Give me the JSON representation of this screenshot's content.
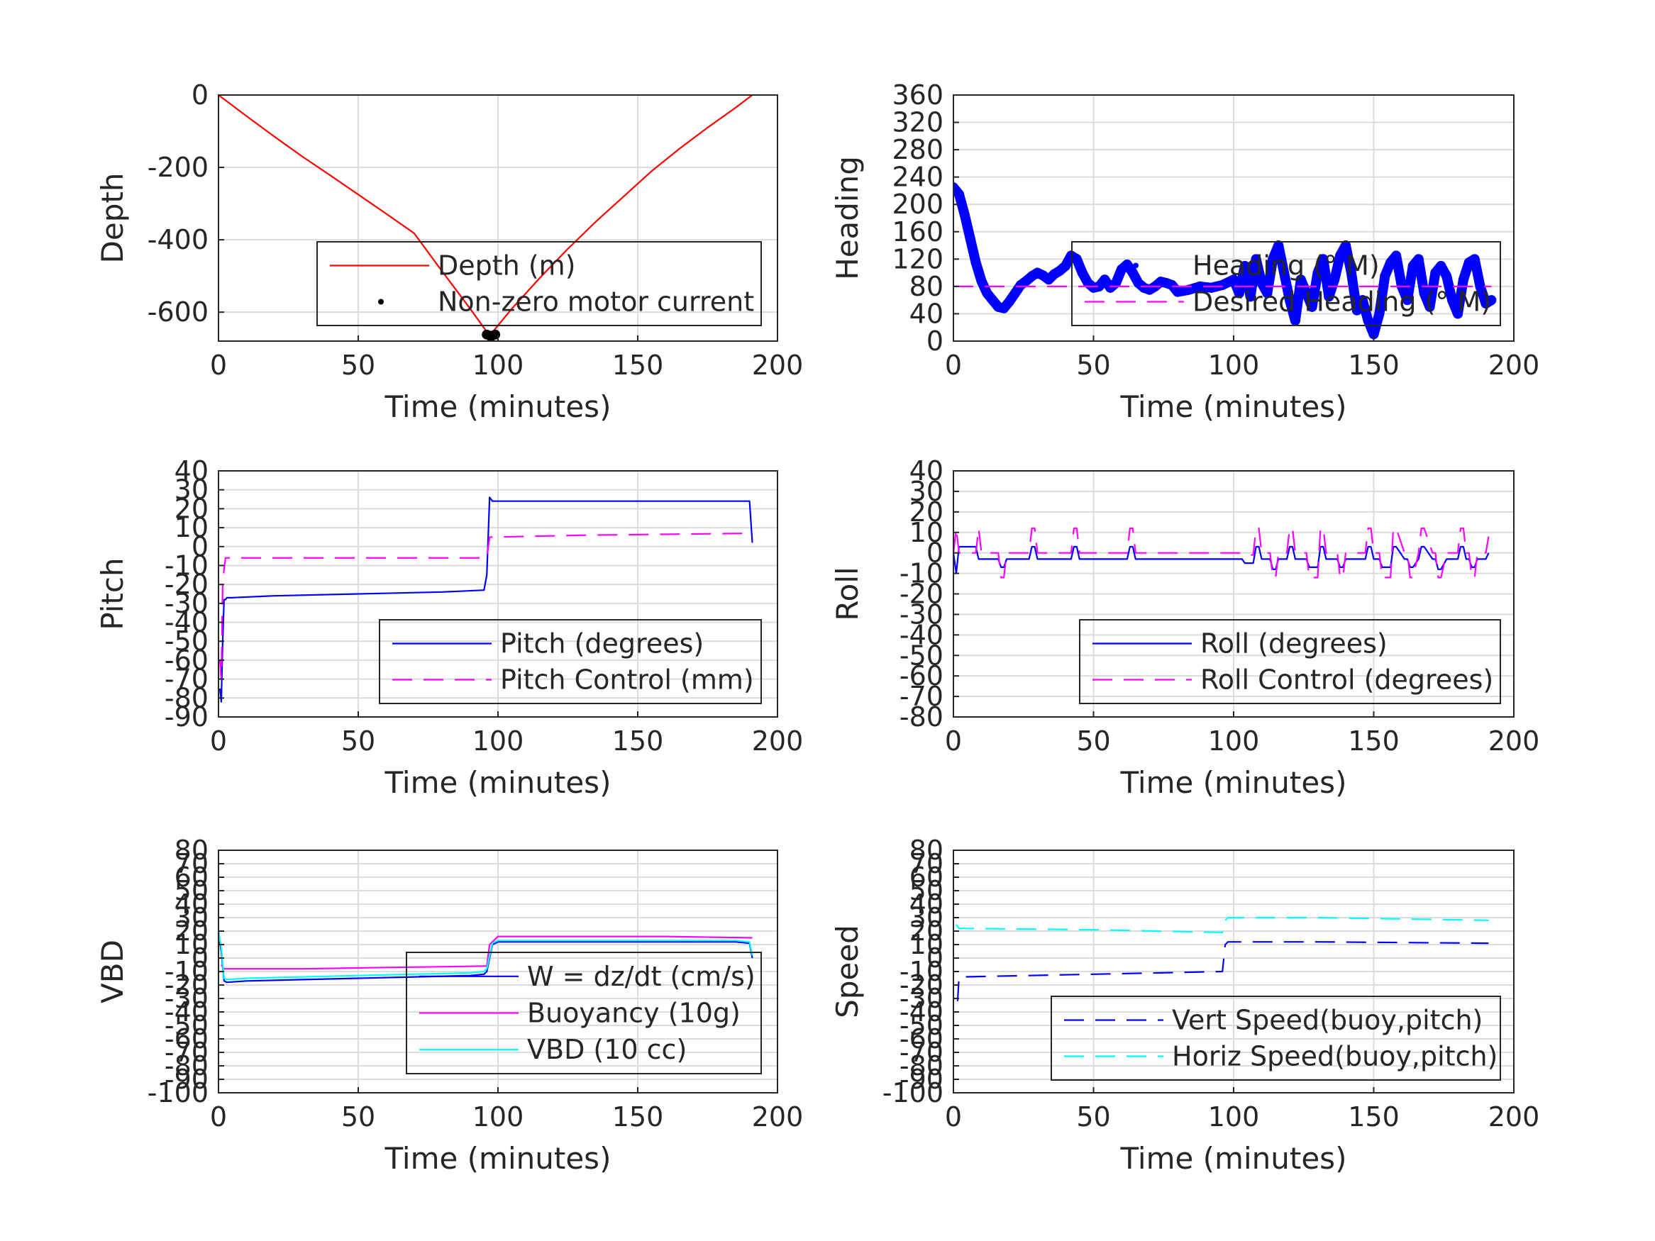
{
  "chart_data": [
    {
      "id": "depth",
      "type": "line",
      "xlabel": "Time (minutes)",
      "ylabel": "Depth",
      "xlim": [
        0,
        200
      ],
      "ylim": [
        -680,
        0
      ],
      "xticks": [
        0,
        50,
        100,
        150,
        200
      ],
      "yticks": [
        0,
        -200,
        -400,
        -600
      ],
      "grid": true,
      "legend_position": "lower-right",
      "series": [
        {
          "name": "Depth (m)",
          "color": "#ff0000",
          "style": "solid",
          "x": [
            0,
            10,
            20,
            30,
            40,
            50,
            60,
            70,
            80,
            90,
            97,
            105,
            115,
            125,
            135,
            145,
            155,
            165,
            175,
            185,
            191
          ],
          "y": [
            0,
            -58,
            -115,
            -170,
            -222,
            -275,
            -328,
            -382,
            -487,
            -590,
            -665,
            -590,
            -505,
            -425,
            -350,
            -280,
            -210,
            -148,
            -90,
            -35,
            0
          ]
        },
        {
          "name": "Non-zero motor current",
          "color": "#000000",
          "style": "marker",
          "x": [
            96,
            97,
            98,
            99
          ],
          "y": [
            -662,
            -665,
            -665,
            -662
          ]
        }
      ]
    },
    {
      "id": "heading",
      "type": "line",
      "xlabel": "Time (minutes)",
      "ylabel": "Heading",
      "xlim": [
        0,
        200
      ],
      "ylim": [
        0,
        360
      ],
      "xticks": [
        0,
        50,
        100,
        150,
        200
      ],
      "yticks": [
        0,
        40,
        80,
        120,
        160,
        200,
        240,
        280,
        320,
        360
      ],
      "grid": true,
      "legend_position": "lower-right",
      "series": [
        {
          "name": "Heading (° M)",
          "color": "#0000ff",
          "style": "marker",
          "x": [
            0,
            2,
            4,
            6,
            8,
            10,
            12,
            14,
            16,
            18,
            20,
            22,
            24,
            26,
            28,
            30,
            32,
            34,
            36,
            38,
            40,
            42,
            44,
            46,
            48,
            50,
            52,
            54,
            56,
            58,
            60,
            62,
            64,
            66,
            68,
            70,
            72,
            74,
            76,
            78,
            80,
            84,
            88,
            92,
            96,
            100,
            102,
            104,
            106,
            108,
            110,
            112,
            114,
            116,
            118,
            120,
            122,
            124,
            126,
            128,
            130,
            132,
            134,
            136,
            138,
            140,
            142,
            144,
            146,
            148,
            150,
            152,
            154,
            156,
            158,
            160,
            162,
            164,
            166,
            168,
            170,
            172,
            174,
            176,
            178,
            180,
            182,
            184,
            186,
            188,
            190,
            192
          ],
          "y": [
            225,
            215,
            185,
            150,
            115,
            88,
            70,
            60,
            50,
            48,
            58,
            70,
            82,
            88,
            95,
            100,
            96,
            90,
            98,
            103,
            110,
            125,
            120,
            100,
            85,
            78,
            80,
            90,
            78,
            85,
            105,
            112,
            100,
            85,
            78,
            75,
            80,
            87,
            85,
            82,
            72,
            75,
            80,
            78,
            82,
            90,
            70,
            110,
            65,
            120,
            85,
            70,
            120,
            140,
            100,
            60,
            30,
            90,
            70,
            50,
            100,
            120,
            65,
            90,
            125,
            140,
            100,
            45,
            60,
            30,
            10,
            40,
            95,
            115,
            125,
            80,
            60,
            110,
            120,
            70,
            50,
            100,
            110,
            95,
            60,
            40,
            90,
            115,
            120,
            80,
            55,
            60
          ]
        },
        {
          "name": "Desired Heading (° M)",
          "color": "#ff00ff",
          "style": "dashed",
          "x": [
            0,
            192
          ],
          "y": [
            80,
            80
          ]
        }
      ]
    },
    {
      "id": "pitch",
      "type": "line",
      "xlabel": "Time (minutes)",
      "ylabel": "Pitch",
      "xlim": [
        0,
        200
      ],
      "ylim": [
        -90,
        40
      ],
      "xticks": [
        0,
        50,
        100,
        150,
        200
      ],
      "yticks": [
        40,
        30,
        20,
        10,
        0,
        -10,
        -20,
        -30,
        -40,
        -50,
        -60,
        -70,
        -80,
        -90
      ],
      "grid": true,
      "legend_position": "lower-right",
      "series": [
        {
          "name": "Pitch (degrees)",
          "color": "#0000ff",
          "style": "solid",
          "x": [
            0.5,
            1,
            1.5,
            2,
            2.5,
            3,
            5,
            20,
            50,
            80,
            95,
            96,
            97,
            98,
            100,
            130,
            160,
            185,
            190,
            191
          ],
          "y": [
            -75,
            -82,
            -50,
            -28,
            -28,
            -27,
            -27,
            -26,
            -25,
            -24,
            -23,
            -15,
            26,
            24,
            24,
            24,
            24,
            24,
            24,
            2
          ]
        },
        {
          "name": "Pitch Control (mm)",
          "color": "#ff00ff",
          "style": "dashed",
          "x": [
            0.5,
            1,
            1.5,
            2,
            2.5,
            5,
            95,
            96,
            97,
            98,
            130,
            190,
            191
          ],
          "y": [
            -60,
            -70,
            -20,
            -12,
            -6,
            -6,
            -6,
            -6,
            5,
            5,
            6,
            7,
            7
          ]
        }
      ]
    },
    {
      "id": "roll",
      "type": "line",
      "xlabel": "Time (minutes)",
      "ylabel": "Roll",
      "xlim": [
        0,
        200
      ],
      "ylim": [
        -80,
        40
      ],
      "xticks": [
        0,
        50,
        100,
        150,
        200
      ],
      "yticks": [
        40,
        30,
        20,
        10,
        0,
        -10,
        -20,
        -30,
        -40,
        -50,
        -60,
        -70,
        -80
      ],
      "grid": true,
      "legend_position": "lower-right",
      "series": [
        {
          "name": "Roll (degrees)",
          "color": "#0000ff",
          "style": "solid",
          "x": [
            0,
            1,
            2,
            3,
            8,
            9,
            10,
            16,
            17,
            18,
            19,
            20,
            27,
            28,
            29,
            30,
            42,
            43,
            44,
            45,
            46,
            62,
            63,
            64,
            65,
            66,
            100,
            103,
            104,
            107,
            108,
            109,
            110,
            111,
            113,
            114,
            115,
            116,
            117,
            119,
            120,
            121,
            122,
            126,
            127,
            130,
            131,
            132,
            133,
            134,
            137,
            138,
            139,
            140,
            147,
            148,
            149,
            150,
            151,
            152,
            153,
            156,
            157,
            158,
            161,
            162,
            163,
            164,
            166,
            167,
            168,
            171,
            172,
            173,
            174,
            176,
            177,
            180,
            181,
            182,
            183,
            184,
            185,
            186,
            187,
            190,
            191
          ],
          "y": [
            0,
            -10,
            3,
            3,
            3,
            -3,
            -3,
            -3,
            -7,
            -7,
            -3,
            -3,
            -3,
            3,
            3,
            -3,
            -3,
            3,
            3,
            -3,
            -3,
            -3,
            3,
            3,
            -3,
            -3,
            -3,
            -3,
            -5,
            -5,
            3,
            3,
            -3,
            -3,
            -3,
            -8,
            -8,
            -3,
            -3,
            -3,
            3,
            3,
            -3,
            -3,
            -7,
            -7,
            3,
            3,
            -3,
            -3,
            -3,
            -7,
            -7,
            -3,
            -3,
            3,
            3,
            -3,
            -3,
            -3,
            -7,
            -7,
            3,
            3,
            -3,
            -3,
            -7,
            -7,
            -3,
            3,
            3,
            -3,
            -3,
            -8,
            -8,
            -3,
            -3,
            -3,
            3,
            3,
            -3,
            -3,
            -7,
            -7,
            -3,
            -3,
            0
          ]
        },
        {
          "name": "Roll Control (degrees)",
          "color": "#ff00ff",
          "style": "dashed",
          "x": [
            0,
            1,
            2,
            3,
            8,
            9,
            10,
            16,
            17,
            18,
            19,
            20,
            27,
            28,
            29,
            30,
            42,
            43,
            44,
            45,
            46,
            62,
            63,
            64,
            65,
            66,
            100,
            104,
            105,
            107,
            108,
            109,
            110,
            111,
            113,
            114,
            115,
            116,
            117,
            119,
            120,
            121,
            122,
            126,
            127,
            130,
            131,
            132,
            133,
            134,
            137,
            138,
            139,
            140,
            147,
            148,
            149,
            150,
            151,
            152,
            153,
            156,
            157,
            158,
            161,
            162,
            163,
            164,
            166,
            167,
            168,
            171,
            172,
            173,
            174,
            176,
            177,
            180,
            181,
            182,
            183,
            184,
            185,
            186,
            187,
            190,
            191
          ],
          "y": [
            0,
            12,
            0,
            0,
            0,
            12,
            0,
            0,
            -12,
            -12,
            0,
            0,
            0,
            12,
            12,
            0,
            0,
            12,
            12,
            0,
            0,
            0,
            12,
            12,
            0,
            0,
            0,
            0,
            -1,
            -1,
            12,
            12,
            0,
            0,
            0,
            -12,
            -12,
            0,
            0,
            0,
            12,
            12,
            0,
            0,
            -12,
            -12,
            12,
            12,
            0,
            0,
            0,
            -12,
            -12,
            0,
            0,
            12,
            12,
            0,
            0,
            0,
            -12,
            -12,
            12,
            12,
            0,
            0,
            -12,
            -12,
            0,
            12,
            12,
            0,
            0,
            -12,
            -12,
            0,
            0,
            0,
            12,
            12,
            0,
            0,
            -12,
            -12,
            0,
            0,
            8
          ]
        }
      ]
    },
    {
      "id": "vbd",
      "type": "line",
      "xlabel": "Time (minutes)",
      "ylabel": "VBD",
      "xlim": [
        0,
        200
      ],
      "ylim": [
        -100,
        80
      ],
      "xticks": [
        0,
        50,
        100,
        150,
        200
      ],
      "yticks": [
        80,
        70,
        60,
        50,
        40,
        30,
        20,
        10,
        0,
        -10,
        -20,
        -30,
        -40,
        -50,
        -60,
        -70,
        -80,
        -90,
        -100
      ],
      "ytick_labels": [
        "80",
        "70",
        "60",
        "50",
        "40",
        "30",
        "20",
        "10",
        "0",
        "-10",
        "-20",
        "-30",
        "-40",
        "-50",
        "-60",
        "-70",
        "-80",
        "-90",
        "-100"
      ],
      "grid": true,
      "legend_position": "lower-right",
      "series": [
        {
          "name": "W = dz/dt (cm/s)",
          "color": "#0000ff",
          "style": "solid",
          "x": [
            0,
            1,
            2,
            3,
            10,
            30,
            50,
            70,
            90,
            95,
            96,
            98,
            100,
            130,
            160,
            185,
            190,
            191
          ],
          "y": [
            18,
            5,
            -17,
            -18,
            -17,
            -16,
            -15,
            -14,
            -13,
            -12,
            -10,
            10,
            12,
            12,
            12,
            12,
            11,
            0
          ]
        },
        {
          "name": "Buoyancy (10g)",
          "color": "#ff00ff",
          "style": "solid",
          "x": [
            1,
            2,
            5,
            30,
            60,
            95,
            96,
            97,
            100,
            130,
            160,
            191
          ],
          "y": [
            -5,
            -8,
            -8,
            -8,
            -7,
            -6,
            -6,
            10,
            16,
            16,
            16,
            15
          ]
        },
        {
          "name": "VBD (10 cc)",
          "color": "#00ffff",
          "style": "solid",
          "x": [
            0,
            1,
            2,
            3,
            10,
            30,
            50,
            70,
            90,
            95,
            96,
            98,
            100,
            130,
            160,
            185,
            190,
            191
          ],
          "y": [
            20,
            8,
            -15,
            -16,
            -15,
            -14,
            -13,
            -12,
            -11,
            -10,
            -8,
            11,
            13,
            13,
            13,
            13,
            12,
            2
          ]
        }
      ]
    },
    {
      "id": "speed",
      "type": "line",
      "xlabel": "Time (minutes)",
      "ylabel": "Speed",
      "xlim": [
        0,
        200
      ],
      "ylim": [
        -100,
        80
      ],
      "xticks": [
        0,
        50,
        100,
        150,
        200
      ],
      "yticks": [
        80,
        70,
        60,
        50,
        40,
        30,
        20,
        10,
        0,
        -10,
        -20,
        -30,
        -40,
        -50,
        -60,
        -70,
        -80,
        -90,
        -100
      ],
      "ytick_labels": [
        "80",
        "70",
        "60",
        "50",
        "40",
        "30",
        "20",
        "10",
        "0",
        "-10",
        "-20",
        "-30",
        "-40",
        "-50",
        "-60",
        "-70",
        "-80",
        "-90",
        "-100"
      ],
      "grid": true,
      "legend_position": "lower-right",
      "series": [
        {
          "name": "Vert Speed(buoy,pitch)",
          "color": "#0000ff",
          "style": "dashed",
          "x": [
            1.5,
            2,
            3,
            50,
            96,
            97,
            98,
            130,
            191
          ],
          "y": [
            -32,
            -14,
            -14,
            -12,
            -10,
            10,
            12,
            12,
            11
          ]
        },
        {
          "name": "Horiz Speed(buoy,pitch)",
          "color": "#00ffff",
          "style": "dashed",
          "x": [
            1,
            2,
            3,
            50,
            96,
            97,
            98,
            130,
            191
          ],
          "y": [
            25,
            22,
            22,
            21,
            19,
            28,
            30,
            30,
            28
          ]
        }
      ]
    }
  ]
}
